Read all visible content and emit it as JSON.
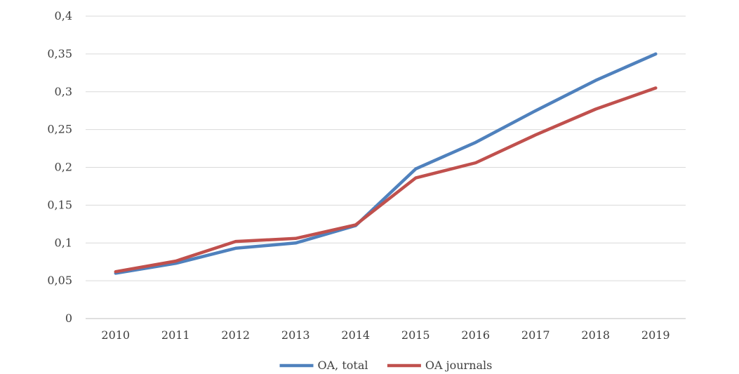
{
  "chart_data": {
    "type": "line",
    "title": "",
    "xlabel": "",
    "ylabel": "",
    "categories": [
      "2010",
      "2011",
      "2012",
      "2013",
      "2014",
      "2015",
      "2016",
      "2017",
      "2018",
      "2019"
    ],
    "ylim": [
      0,
      0.4
    ],
    "y_ticks": [
      0,
      0.05,
      0.1,
      0.15,
      0.2,
      0.25,
      0.3,
      0.35,
      0.4
    ],
    "y_tick_labels": [
      "0",
      "0,05",
      "0,1",
      "0,15",
      "0,2",
      "0,25",
      "0,3",
      "0,35",
      "0,4"
    ],
    "grid": "horizontal",
    "legend_position": "bottom",
    "series": [
      {
        "name": "OA, total",
        "color": "#4f81bd",
        "values": [
          0.06,
          0.073,
          0.093,
          0.1,
          0.123,
          0.198,
          0.233,
          0.275,
          0.315,
          0.35
        ]
      },
      {
        "name": "OA journals",
        "color": "#c0504d",
        "values": [
          0.062,
          0.076,
          0.102,
          0.106,
          0.124,
          0.186,
          0.206,
          0.243,
          0.277,
          0.305
        ]
      }
    ]
  }
}
